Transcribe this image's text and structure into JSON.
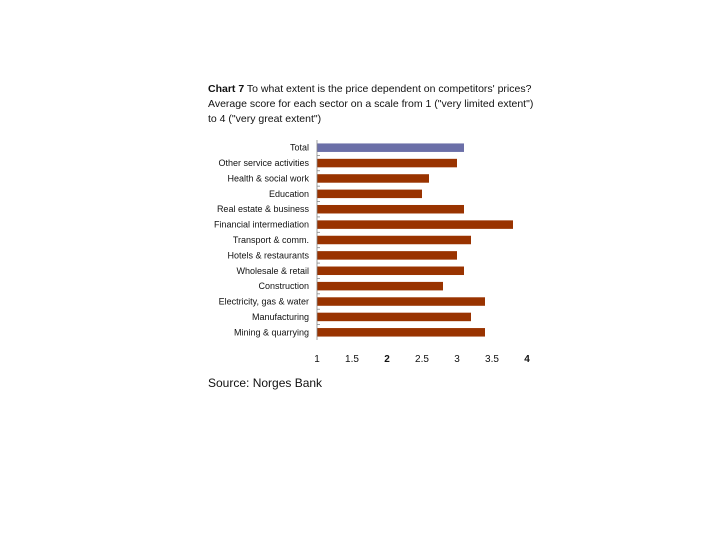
{
  "title": {
    "prefix": "Chart 7",
    "text": "To what extent is the price dependent on competitors' prices? Average score for each sector on a scale from 1 (\"very limited extent\") to 4 (\"very great extent\")"
  },
  "source": "Source: Norges Bank",
  "chart_data": {
    "type": "bar",
    "orientation": "horizontal",
    "categories": [
      "Total",
      "Other service activities",
      "Health & social work",
      "Education",
      "Real estate & business",
      "Financial intermediation",
      "Transport & comm.",
      "Hotels & restaurants",
      "Wholesale & retail",
      "Construction",
      "Electricity, gas & water",
      "Manufacturing",
      "Mining & quarrying"
    ],
    "values": [
      3.1,
      3.0,
      2.6,
      2.5,
      3.1,
      3.8,
      3.2,
      3.0,
      3.1,
      2.8,
      3.4,
      3.2,
      3.4
    ],
    "xlim": [
      1,
      4
    ],
    "xticks": [
      "1",
      "1.5",
      "2",
      "2.5",
      "3",
      "3.5",
      "4"
    ],
    "colors": {
      "total": "#6b6fa8",
      "sector": "#993300"
    },
    "grid": false,
    "legend": "none"
  }
}
